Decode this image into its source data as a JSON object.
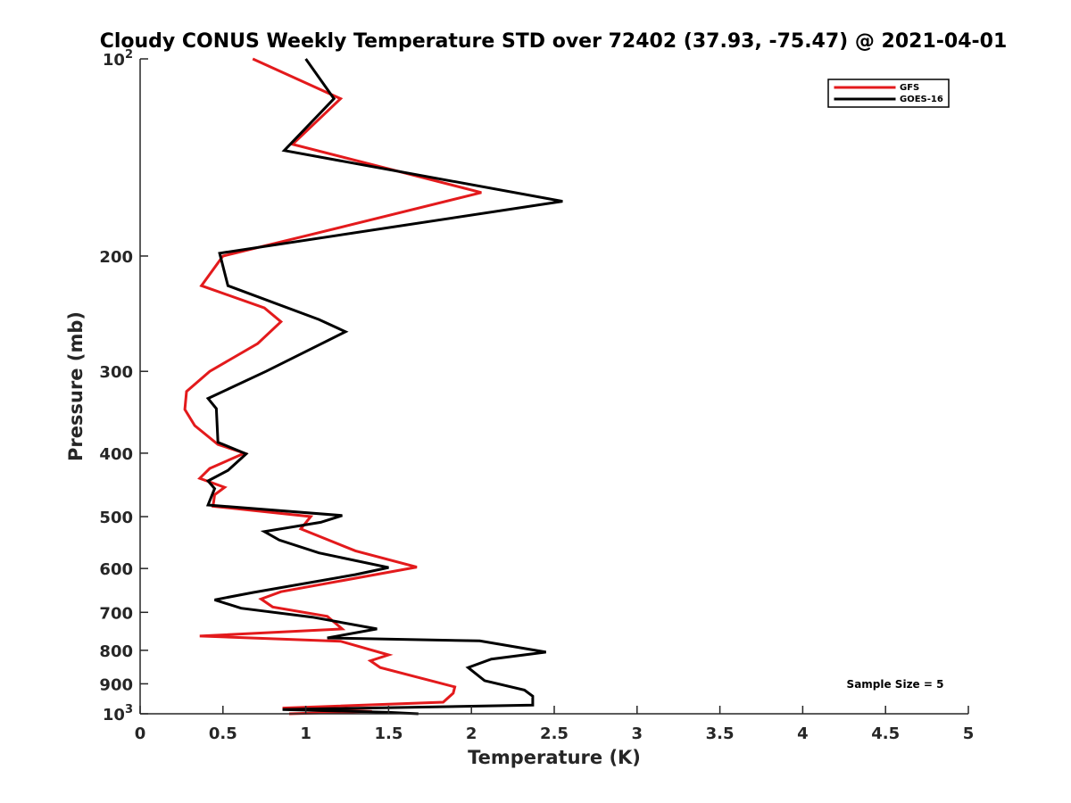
{
  "chart_data": {
    "type": "line",
    "title": "Cloudy CONUS Weekly Temperature STD over 72402 (37.93, -75.47) @ 2021-04-01",
    "xlabel": "Temperature (K)",
    "ylabel": "Pressure (mb)",
    "xlim": [
      0,
      5
    ],
    "ylim": [
      100,
      1000
    ],
    "y_scale": "log",
    "y_reversed": true,
    "x_ticks": [
      "0",
      "0.5",
      "1",
      "1.5",
      "2",
      "2.5",
      "3",
      "3.5",
      "4",
      "4.5",
      "5"
    ],
    "y_ticks": [
      {
        "value": 100,
        "base": "10",
        "exp": "2"
      },
      {
        "value": 200,
        "label": "200"
      },
      {
        "value": 300,
        "label": "300"
      },
      {
        "value": 400,
        "label": "400"
      },
      {
        "value": 500,
        "label": "500"
      },
      {
        "value": 600,
        "label": "600"
      },
      {
        "value": 700,
        "label": "700"
      },
      {
        "value": 800,
        "label": "800"
      },
      {
        "value": 900,
        "label": "900"
      },
      {
        "value": 1000,
        "base": "10",
        "exp": "3"
      }
    ],
    "legend": "top-right",
    "grid": false,
    "annotation": "Sample Size = 5",
    "series": [
      {
        "name": "GFS",
        "color": "#e31a1c",
        "points": [
          [
            0.68,
            100
          ],
          [
            1.21,
            115
          ],
          [
            0.92,
            135
          ],
          [
            2.06,
            160
          ],
          [
            1.05,
            185
          ],
          [
            0.5,
            200
          ],
          [
            0.37,
            222
          ],
          [
            0.75,
            240
          ],
          [
            0.85,
            252
          ],
          [
            0.71,
            272
          ],
          [
            0.42,
            300
          ],
          [
            0.28,
            322
          ],
          [
            0.27,
            343
          ],
          [
            0.33,
            363
          ],
          [
            0.47,
            388
          ],
          [
            0.63,
            400
          ],
          [
            0.42,
            422
          ],
          [
            0.36,
            437
          ],
          [
            0.51,
            451
          ],
          [
            0.45,
            463
          ],
          [
            0.44,
            482
          ],
          [
            1.03,
            500
          ],
          [
            0.97,
            522
          ],
          [
            1.3,
            564
          ],
          [
            1.67,
            597
          ],
          [
            0.85,
            651
          ],
          [
            0.73,
            668
          ],
          [
            0.8,
            687
          ],
          [
            1.13,
            710
          ],
          [
            1.22,
            742
          ],
          [
            0.36,
            761
          ],
          [
            1.21,
            775
          ],
          [
            1.5,
            813
          ],
          [
            1.39,
            830
          ],
          [
            1.45,
            850
          ],
          [
            1.68,
            880
          ],
          [
            1.9,
            910
          ],
          [
            1.89,
            930
          ],
          [
            1.83,
            960
          ],
          [
            0.86,
            980
          ],
          [
            1.4,
            992
          ],
          [
            0.9,
            1000
          ]
        ]
      },
      {
        "name": "GOES-16",
        "color": "#000000",
        "points": [
          [
            1.0,
            100
          ],
          [
            1.17,
            115
          ],
          [
            0.87,
            138
          ],
          [
            2.55,
            165
          ],
          [
            0.48,
            198
          ],
          [
            0.53,
            222
          ],
          [
            1.08,
            250
          ],
          [
            1.24,
            261
          ],
          [
            0.76,
            300
          ],
          [
            0.41,
            330
          ],
          [
            0.46,
            342
          ],
          [
            0.47,
            385
          ],
          [
            0.64,
            401
          ],
          [
            0.53,
            425
          ],
          [
            0.41,
            441
          ],
          [
            0.45,
            453
          ],
          [
            0.41,
            480
          ],
          [
            1.22,
            498
          ],
          [
            1.09,
            510
          ],
          [
            0.75,
            527
          ],
          [
            0.84,
            543
          ],
          [
            1.08,
            568
          ],
          [
            1.5,
            598
          ],
          [
            1.3,
            613
          ],
          [
            0.68,
            653
          ],
          [
            0.45,
            670
          ],
          [
            0.61,
            690
          ],
          [
            1.04,
            712
          ],
          [
            1.43,
            742
          ],
          [
            1.13,
            766
          ],
          [
            2.05,
            774
          ],
          [
            2.45,
            805
          ],
          [
            2.12,
            825
          ],
          [
            1.98,
            850
          ],
          [
            2.08,
            890
          ],
          [
            2.32,
            920
          ],
          [
            2.37,
            940
          ],
          [
            2.37,
            970
          ],
          [
            0.86,
            985
          ],
          [
            1.5,
            995
          ],
          [
            1.68,
            1000
          ]
        ]
      }
    ]
  }
}
